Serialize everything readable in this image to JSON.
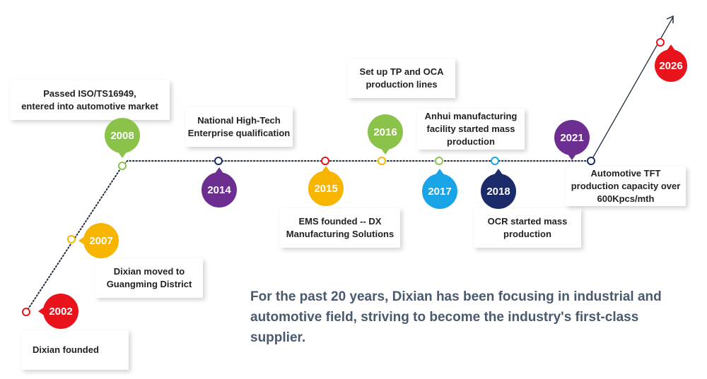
{
  "colors": {
    "line": "#1f2d3d",
    "green": "#8bc34a",
    "yellow": "#f7b500",
    "purple": "#6d2e91",
    "red": "#e8131b",
    "lightblue": "#1aa4e8",
    "navy": "#1b2a68"
  },
  "milestones": [
    {
      "id": "2002",
      "year": "2002",
      "text": "Dixian founded",
      "badge_color": "red",
      "marker_color": "red"
    },
    {
      "id": "2007",
      "year": "2007",
      "text": "Dixian moved to\nGuangming District",
      "badge_color": "yellow",
      "marker_color": "yellow"
    },
    {
      "id": "2008",
      "year": "2008",
      "text": "Passed ISO/TS16949,\nentered into automotive market",
      "badge_color": "green",
      "marker_color": "green"
    },
    {
      "id": "2014",
      "year": "2014",
      "text": "National High-Tech\nEnterprise qualification",
      "badge_color": "purple",
      "marker_color": "navy"
    },
    {
      "id": "2015",
      "year": "2015",
      "text": "EMS founded -- DX\nManufacturing Solutions",
      "badge_color": "yellow",
      "marker_color": "red"
    },
    {
      "id": "2016",
      "year": "2016",
      "text": "Set up TP and OCA\nproduction lines",
      "badge_color": "green",
      "marker_color": "yellow"
    },
    {
      "id": "2017",
      "year": "2017",
      "text": "Anhui manufacturing\nfacility started mass\nproduction",
      "badge_color": "lightblue",
      "marker_color": "green"
    },
    {
      "id": "2018",
      "year": "2018",
      "text": "OCR started mass\nproduction",
      "badge_color": "navy",
      "marker_color": "lightblue"
    },
    {
      "id": "2021",
      "year": "2021",
      "text": "Automotive TFT\nproduction capacity over\n600Kpcs/mth",
      "badge_color": "purple",
      "marker_color": "navy"
    },
    {
      "id": "2026",
      "year": "2026",
      "text": "",
      "badge_color": "red",
      "marker_color": "red"
    }
  ],
  "summary": "For the past 20 years, Dixian has been focusing in industrial and automotive field, striving to become the industry's first-class supplier."
}
